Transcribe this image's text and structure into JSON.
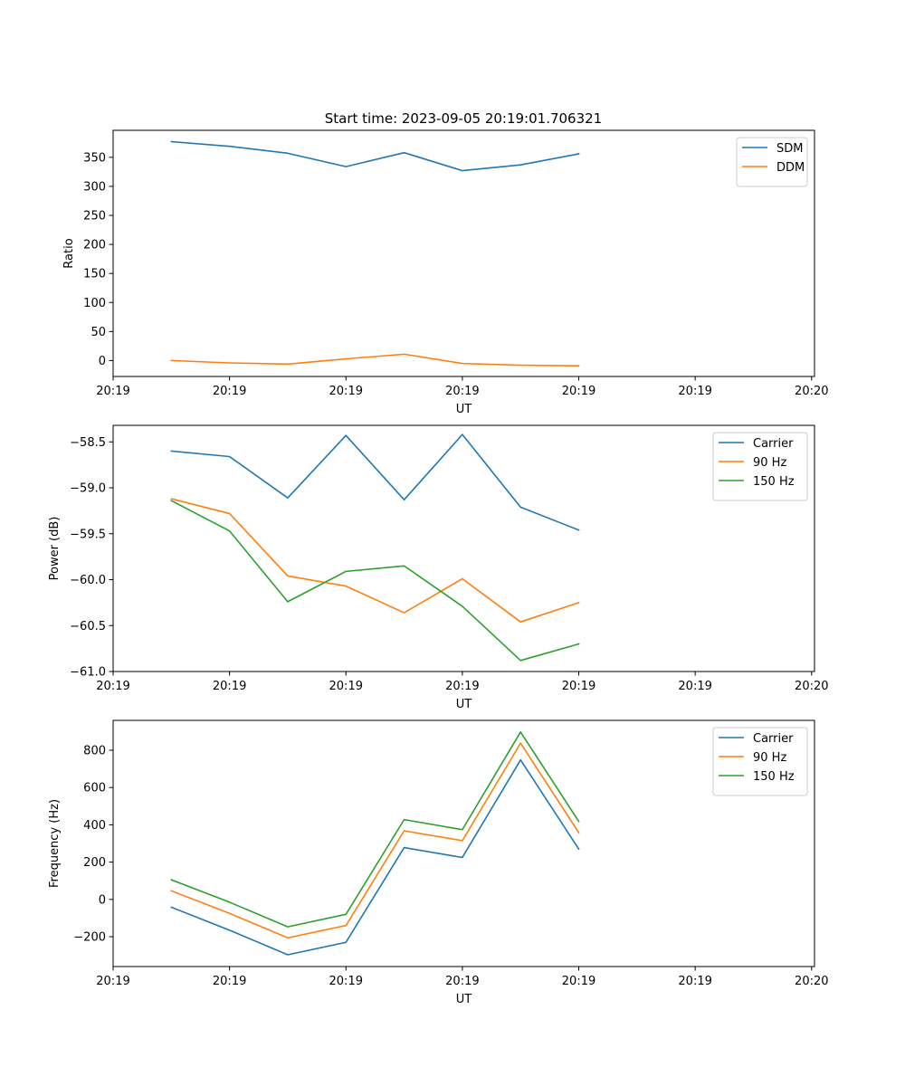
{
  "figure_title": "Start time: 2023-09-05 20:19:01.706321",
  "colors": {
    "blue": "#1f77b4",
    "orange": "#ff7f0e",
    "green": "#2ca02c"
  },
  "chart_data": [
    {
      "type": "line",
      "title": "Start time: 2023-09-05 20:19:01.706321",
      "xlabel": "UT",
      "ylabel": "Ratio",
      "x": [
        1,
        2,
        3,
        4,
        5,
        6,
        7,
        8
      ],
      "xlim": [
        0,
        12.05
      ],
      "xticks": [
        0,
        2,
        4,
        6,
        8,
        10,
        12
      ],
      "xtick_labels": [
        "20:19",
        "20:19",
        "20:19",
        "20:19",
        "20:19",
        "20:19",
        "20:20"
      ],
      "ylim": [
        -27.4,
        396.5
      ],
      "yticks": [
        0,
        50,
        100,
        150,
        200,
        250,
        300,
        350
      ],
      "ytick_labels": [
        "0",
        "50",
        "100",
        "150",
        "200",
        "250",
        "300",
        "350"
      ],
      "legend_position": "top-right",
      "series": [
        {
          "name": "SDM",
          "color": "#1f77b4",
          "values": [
            377,
            369,
            357,
            334,
            358,
            327,
            337,
            356
          ]
        },
        {
          "name": "DDM",
          "color": "#ff7f0e",
          "values": [
            0,
            -4,
            -6,
            3,
            11,
            -5,
            -8,
            -9
          ]
        }
      ]
    },
    {
      "type": "line",
      "xlabel": "UT",
      "ylabel": "Power (dB)",
      "x": [
        1,
        2,
        3,
        4,
        5,
        6,
        7,
        8
      ],
      "xlim": [
        0,
        12.05
      ],
      "xticks": [
        0,
        2,
        4,
        6,
        8,
        10,
        12
      ],
      "xtick_labels": [
        "20:19",
        "20:19",
        "20:19",
        "20:19",
        "20:19",
        "20:19",
        "20:20"
      ],
      "ylim": [
        -61.0,
        -58.32
      ],
      "yticks": [
        -58.5,
        -59.0,
        -59.5,
        -60.0,
        -60.5,
        -61.0
      ],
      "ytick_labels": [
        "−58.5",
        "−59.0",
        "−59.5",
        "−60.0",
        "−60.5",
        "−61.0"
      ],
      "legend_position": "top-right",
      "series": [
        {
          "name": "Carrier",
          "color": "#1f77b4",
          "values": [
            -58.6,
            -58.66,
            -59.11,
            -58.43,
            -59.13,
            -58.42,
            -59.21,
            -59.46
          ]
        },
        {
          "name": "90 Hz",
          "color": "#ff7f0e",
          "values": [
            -59.12,
            -59.28,
            -59.96,
            -60.07,
            -60.36,
            -59.99,
            -60.46,
            -60.25
          ]
        },
        {
          "name": "150 Hz",
          "color": "#2ca02c",
          "values": [
            -59.14,
            -59.47,
            -60.24,
            -59.91,
            -59.85,
            -60.29,
            -60.88,
            -60.7
          ]
        }
      ]
    },
    {
      "type": "line",
      "xlabel": "UT",
      "ylabel": "Frequency (Hz)",
      "x": [
        1,
        2,
        3,
        4,
        5,
        6,
        7,
        8
      ],
      "xlim": [
        0,
        12.05
      ],
      "xticks": [
        0,
        2,
        4,
        6,
        8,
        10,
        12
      ],
      "xtick_labels": [
        "20:19",
        "20:19",
        "20:19",
        "20:19",
        "20:19",
        "20:19",
        "20:20"
      ],
      "ylim": [
        -360,
        960
      ],
      "yticks": [
        800,
        600,
        400,
        200,
        0,
        -200
      ],
      "ytick_labels": [
        "800",
        "600",
        "400",
        "200",
        "0",
        "−200"
      ],
      "legend_position": "top-right",
      "series": [
        {
          "name": "Carrier",
          "color": "#1f77b4",
          "values": [
            -42,
            -165,
            -297,
            -230,
            278,
            225,
            748,
            270
          ]
        },
        {
          "name": "90 Hz",
          "color": "#ff7f0e",
          "values": [
            46,
            -75,
            -206,
            -140,
            368,
            315,
            838,
            358
          ]
        },
        {
          "name": "150 Hz",
          "color": "#2ca02c",
          "values": [
            105,
            -15,
            -147,
            -80,
            428,
            374,
            898,
            418
          ]
        }
      ]
    }
  ]
}
